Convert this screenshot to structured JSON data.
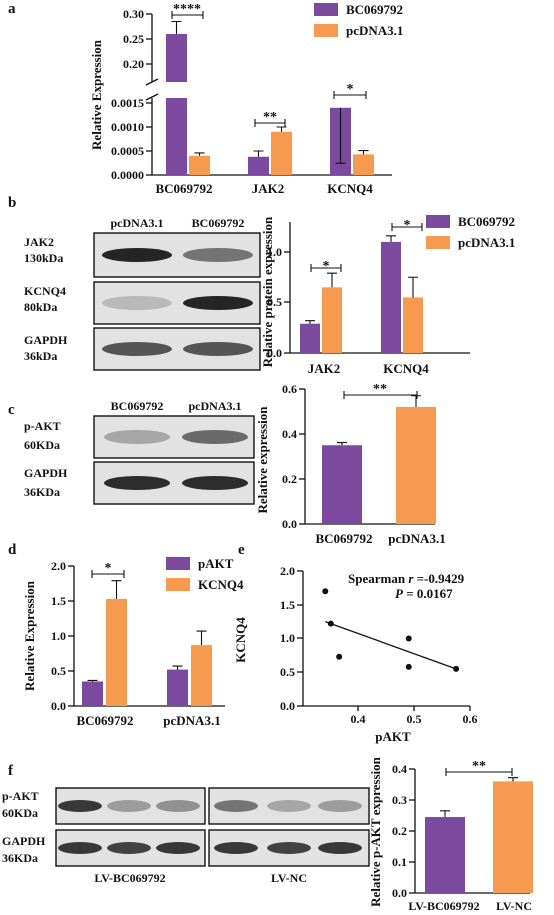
{
  "colors": {
    "purple": "#7b4a9e",
    "orange": "#f59a4f",
    "band": "#1a1a1a"
  },
  "legend": {
    "bc": "BC069792",
    "pc": "pcDNA3.1",
    "pakt": "pAKT",
    "kcnq4": "KCNQ4"
  },
  "panels": {
    "a": {
      "letter": "a",
      "chart_data": {
        "type": "bar",
        "ylabel": "Relative Expression",
        "categories": [
          "BC069792",
          "JAK2",
          "KCNQ4"
        ],
        "series": [
          {
            "name": "BC069792",
            "values": [
              0.26,
              0.00038,
              0.0014
            ],
            "errors": [
              0.025,
              0.00012,
              0.0003
            ]
          },
          {
            "name": "pcDNA3.1",
            "values": [
              0.0004,
              0.0009,
              0.00043
            ],
            "errors": [
              6e-05,
              0.0001,
              8e-05
            ]
          }
        ],
        "axis_break": {
          "lower": [
            0,
            0.0015
          ],
          "upper": [
            0.15,
            0.3
          ]
        },
        "yticks_lower": [
          "0.0000",
          "0.0005",
          "0.0010",
          "0.0015"
        ],
        "yticks_upper": [
          "0.20",
          "0.25",
          "0.30"
        ],
        "significance": [
          "****",
          "**",
          "*"
        ]
      }
    },
    "b": {
      "letter": "b",
      "blot": {
        "lanes": [
          "pcDNA3.1",
          "BC069792"
        ],
        "rows": [
          {
            "protein": "JAK2",
            "size": "130kDa",
            "intensity": [
              0.95,
              0.55
            ]
          },
          {
            "protein": "KCNQ4",
            "size": "80kDa",
            "intensity": [
              0.2,
              0.95
            ]
          },
          {
            "protein": "GAPDH",
            "size": "36kDa",
            "intensity": [
              0.7,
              0.7
            ]
          }
        ]
      },
      "chart_data": {
        "type": "bar",
        "ylabel": "Relative protein expression",
        "categories": [
          "JAK2",
          "KCNQ4"
        ],
        "series": [
          {
            "name": "BC069792",
            "values": [
              0.29,
              1.1
            ],
            "errors": [
              0.03,
              0.06
            ]
          },
          {
            "name": "pcDNA3.1",
            "values": [
              0.65,
              0.55
            ],
            "errors": [
              0.14,
              0.2
            ]
          }
        ],
        "ylim": [
          0,
          1.3
        ],
        "yticks": [
          "0.0",
          "0.5",
          "1.0"
        ],
        "significance": [
          "*",
          "*"
        ]
      }
    },
    "c": {
      "letter": "c",
      "blot": {
        "lanes": [
          "BC069792",
          "pcDNA3.1"
        ],
        "rows": [
          {
            "protein": "p-AKT",
            "size": "60KDa",
            "intensity": [
              0.3,
              0.6
            ]
          },
          {
            "protein": "GAPDH",
            "size": "36KDa",
            "intensity": [
              0.9,
              0.9
            ]
          }
        ]
      },
      "chart_data": {
        "type": "bar",
        "ylabel": "Relative expression",
        "categories": [
          "BC069792",
          "pcDNA3.1"
        ],
        "values": [
          0.35,
          0.52
        ],
        "errors": [
          0.012,
          0.05
        ],
        "ylim": [
          0,
          0.6
        ],
        "yticks": [
          "0.0",
          "0.2",
          "0.4",
          "0.6"
        ],
        "significance": "**"
      }
    },
    "d": {
      "letter": "d",
      "chart_data": {
        "type": "bar",
        "ylabel": "Relative Expression",
        "categories": [
          "BC069792",
          "pcDNA3.1"
        ],
        "series": [
          {
            "name": "pAKT",
            "values": [
              0.35,
              0.52
            ],
            "errors": [
              0.015,
              0.05
            ]
          },
          {
            "name": "KCNQ4",
            "values": [
              1.53,
              0.87
            ],
            "errors": [
              0.26,
              0.2
            ]
          }
        ],
        "ylim": [
          0,
          2.0
        ],
        "yticks": [
          "0.0",
          "0.5",
          "1.0",
          "1.5",
          "2.0"
        ],
        "significance": "*"
      }
    },
    "e": {
      "letter": "e",
      "chart_data": {
        "type": "scatter",
        "xlabel": "pAKT",
        "ylabel": "KCNQ4",
        "x": [
          0.34,
          0.35,
          0.365,
          0.49,
          0.49,
          0.575
        ],
        "y": [
          1.7,
          1.22,
          0.73,
          1.0,
          0.58,
          0.55
        ],
        "fit": {
          "x": [
            0.34,
            0.575
          ],
          "y": [
            1.25,
            0.55
          ]
        },
        "xlim": [
          0.3,
          0.6
        ],
        "ylim": [
          0,
          2.0
        ],
        "xticks": [
          "0.4",
          "0.5",
          "0.6"
        ],
        "yticks": [
          "0.0",
          "0.5",
          "1.0",
          "1.5",
          "2.0"
        ],
        "stat1_label": "Spearman ",
        "stat1_r": "r",
        "stat1_value": " =-0.9429",
        "stat2_p": "P",
        "stat2_value": " = 0.0167"
      }
    },
    "f": {
      "letter": "f",
      "blot": {
        "groups": [
          "LV-BC069792",
          "LV-NC"
        ],
        "rows": [
          {
            "protein": "p-AKT",
            "size": "60KDa",
            "intensity": [
              0.85,
              0.35,
              0.4,
              0.55,
              0.3,
              0.35
            ]
          },
          {
            "protein": "GAPDH",
            "size": "36KDa",
            "intensity": [
              0.85,
              0.8,
              0.85,
              0.85,
              0.8,
              0.85
            ]
          }
        ]
      },
      "chart_data": {
        "type": "bar",
        "ylabel": "Relative p-AKT expression",
        "categories": [
          "LV-BC069792",
          "LV-NC"
        ],
        "values": [
          0.245,
          0.36
        ],
        "errors": [
          0.02,
          0.012
        ],
        "ylim": [
          0,
          0.4
        ],
        "yticks": [
          "0.0",
          "0.1",
          "0.2",
          "0.3",
          "0.4"
        ],
        "significance": "**"
      }
    }
  }
}
